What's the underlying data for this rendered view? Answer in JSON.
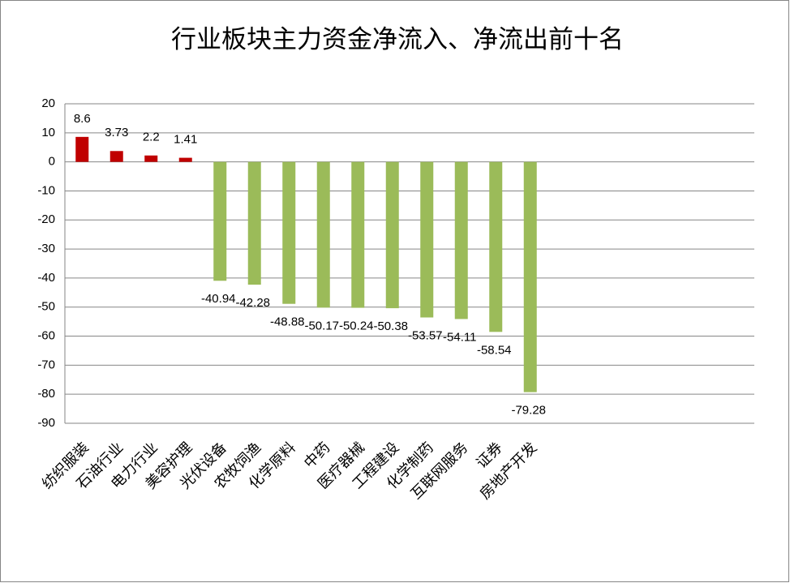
{
  "chart_data": {
    "type": "bar",
    "title": "行业板块主力资金净流入、净流出前十名",
    "categories": [
      "纺织服装",
      "石油行业",
      "电力行业",
      "美容护理",
      "光伏设备",
      "农牧饲渔",
      "化学原料",
      "中药",
      "医疗器械",
      "工程建设",
      "化学制药",
      "互联网服务",
      "证券",
      "房地产开发",
      null,
      null,
      null,
      null,
      null,
      null
    ],
    "values": [
      8.6,
      3.73,
      2.2,
      1.41,
      -40.94,
      -42.28,
      -48.88,
      -50.17,
      -50.24,
      -50.38,
      -53.57,
      -54.11,
      -58.54,
      -79.28,
      null,
      null,
      null,
      null,
      null,
      null
    ],
    "color_positive": "#c00000",
    "color_negative": "#9bbb59",
    "ylim": [
      -90,
      20
    ],
    "yticks": [
      20,
      10,
      0,
      -10,
      -20,
      -30,
      -40,
      -50,
      -60,
      -70,
      -80,
      -90
    ],
    "grid": true
  }
}
